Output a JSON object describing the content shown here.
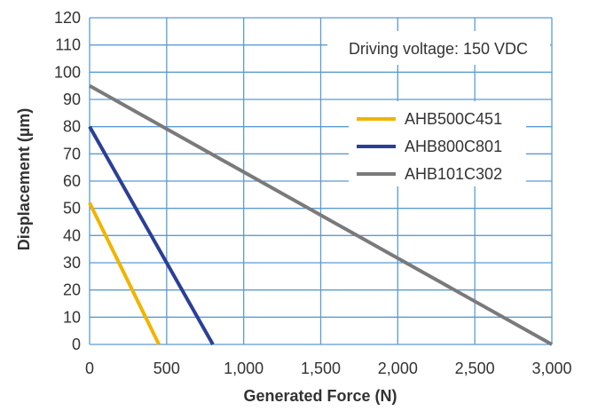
{
  "chart_data": {
    "type": "line",
    "xlabel": "Generated Force (N)",
    "ylabel": "Displacement (µm)",
    "xlim": [
      0,
      3000
    ],
    "ylim": [
      0,
      120
    ],
    "x_ticks": [
      0,
      500,
      1000,
      1500,
      2000,
      2500,
      3000
    ],
    "x_tick_labels": [
      "0",
      "500",
      "1,000",
      "1,500",
      "2,000",
      "2,500",
      "3,000"
    ],
    "y_ticks": [
      0,
      10,
      20,
      30,
      40,
      50,
      60,
      70,
      80,
      90,
      100,
      110,
      120
    ],
    "y_tick_labels": [
      "0",
      "10",
      "20",
      "30",
      "40",
      "50",
      "60",
      "70",
      "80",
      "90",
      "100",
      "110",
      "120"
    ],
    "grid": true,
    "grid_color": "#5b9bd5",
    "annotation": "Driving voltage: 150 VDC",
    "legend_position": "right",
    "series": [
      {
        "name": "AHB500C451",
        "color": "#f0b400",
        "x": [
          0,
          450
        ],
        "y": [
          52,
          0
        ]
      },
      {
        "name": "AHB800C801",
        "color": "#2b3f97",
        "x": [
          0,
          800
        ],
        "y": [
          80,
          0
        ]
      },
      {
        "name": "AHB101C302",
        "color": "#7a7a7a",
        "x": [
          0,
          3000
        ],
        "y": [
          95,
          0
        ]
      }
    ]
  }
}
